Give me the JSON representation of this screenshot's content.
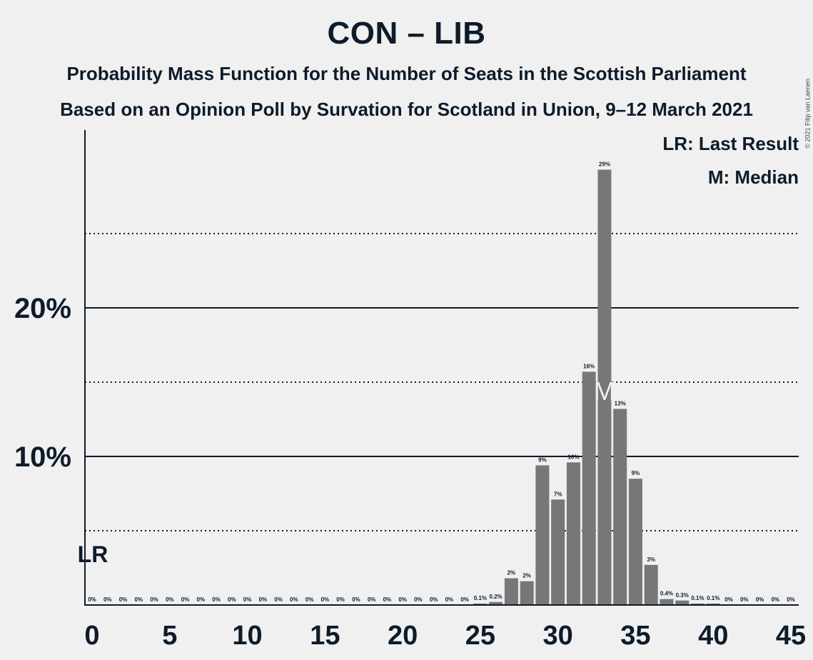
{
  "title": "CON – LIB",
  "subtitle1": "Probability Mass Function for the Number of Seats in the Scottish Parliament",
  "subtitle2": "Based on an Opinion Poll by Survation for Scotland in Union, 9–12 March 2021",
  "copyright": "© 2021 Filip van Laenen",
  "legend": {
    "last_result": "LR: Last Result",
    "median": "M: Median"
  },
  "chart_data": {
    "type": "bar",
    "x": [
      0,
      1,
      2,
      3,
      4,
      5,
      6,
      7,
      8,
      9,
      10,
      11,
      12,
      13,
      14,
      15,
      16,
      17,
      18,
      19,
      20,
      21,
      22,
      23,
      24,
      25,
      26,
      27,
      28,
      29,
      30,
      31,
      32,
      33,
      34,
      35,
      36,
      37,
      38,
      39,
      40,
      41,
      42,
      43,
      44,
      45
    ],
    "values": [
      0,
      0,
      0,
      0,
      0,
      0,
      0,
      0,
      0,
      0,
      0,
      0,
      0,
      0,
      0,
      0,
      0,
      0,
      0,
      0,
      0,
      0,
      0,
      0,
      0,
      0.1,
      0.2,
      1.8,
      1.6,
      9.4,
      7.1,
      9.6,
      15.7,
      29.3,
      13.2,
      8.5,
      2.7,
      0.4,
      0.3,
      0.1,
      0.1,
      0,
      0,
      0,
      0,
      0
    ],
    "labels": [
      "0%",
      "0%",
      "0%",
      "0%",
      "0%",
      "0%",
      "0%",
      "0%",
      "0%",
      "0%",
      "0%",
      "0%",
      "0%",
      "0%",
      "0%",
      "0%",
      "0%",
      "0%",
      "0%",
      "0%",
      "0%",
      "0%",
      "0%",
      "0%",
      "0%",
      "0.1%",
      "0.2%",
      "2%",
      "2%",
      "9%",
      "7%",
      "10%",
      "16%",
      "29%",
      "13%",
      "9%",
      "3%",
      "0.4%",
      "0.3%",
      "0.1%",
      "0.1%",
      "0%",
      "0%",
      "0%",
      "0%",
      "0%"
    ],
    "x_ticks": [
      0,
      5,
      10,
      15,
      20,
      25,
      30,
      35,
      40,
      45
    ],
    "y_ticks": [
      10,
      20
    ],
    "y_tick_labels": [
      "10%",
      "20%"
    ],
    "dotted_grid": [
      5,
      15,
      25
    ],
    "ylim": [
      0,
      31
    ],
    "xlim": [
      0,
      45
    ],
    "bar_color": "#777777",
    "last_result": 0,
    "last_result_label": "LR",
    "median": 33,
    "median_label": "M"
  }
}
